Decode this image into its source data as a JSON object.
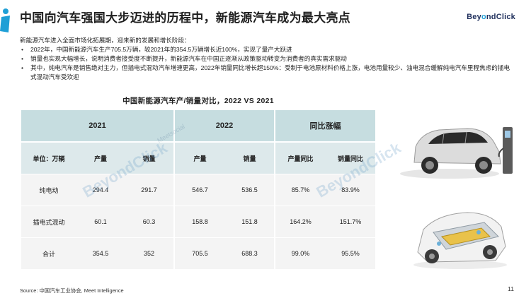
{
  "header": {
    "title": "中国向汽车强国大步迈进的历程中，新能源汽车成为最大亮点",
    "brand_part1": "Bey",
    "brand_part2": "o",
    "brand_part3": "ndClick"
  },
  "intro": "新能源汽车进入全面市场化拓展期，迎来新的发展和增长阶段：",
  "bullets": [
    "2022年，中国新能源汽车生产705.5万辆，较2021年的354.5万辆增长近100%，实现了量产大跃进",
    "销量也实现大幅增长，说明消费者接受度不断提升，新能源汽车在中国正逐渐从政策驱动转变为消费者的真实需求驱动",
    "其中，纯电汽车是销售绝对主力，但插电式混动汽车增速更高，2022年销量同比增长超150%：受制于电池原材料价格上涨，电池用量较少、油电混合缓解纯电汽车里程焦虑的插电式混动汽车受欢迎"
  ],
  "table": {
    "title": "中国新能源汽车产/销量对比，2022 VS 2021",
    "group_headers": [
      "2021",
      "2022",
      "同比涨幅"
    ],
    "unit_label": "单位：万辆",
    "sub_headers": [
      "产量",
      "销量",
      "产量",
      "销量",
      "产量同比",
      "销量同比"
    ],
    "rows": [
      {
        "label": "纯电动",
        "cells": [
          "294.4",
          "291.7",
          "546.7",
          "536.5",
          "85.7%",
          "83.9%"
        ]
      },
      {
        "label": "插电式混动",
        "cells": [
          "60.1",
          "60.3",
          "158.8",
          "151.8",
          "164.2%",
          "151.7%"
        ]
      },
      {
        "label": "合计",
        "cells": [
          "354.5",
          "352",
          "705.5",
          "688.3",
          "99.0%",
          "95.5%"
        ]
      }
    ]
  },
  "watermark": {
    "text": "BeyondClick",
    "sub": "Meetsocial"
  },
  "images": {
    "car_top": "electric-car-charging-image",
    "car_bottom": "car-battery-cutaway-image"
  },
  "footer": {
    "source": "Source: 中国汽车工业协会, Meet Intelligence",
    "page": "11"
  },
  "colors": {
    "header_fill": "#c6dde0",
    "subheader_fill": "#dde9eb",
    "row_fill": "#f4f4f4",
    "accent": "#1f9fd6"
  }
}
